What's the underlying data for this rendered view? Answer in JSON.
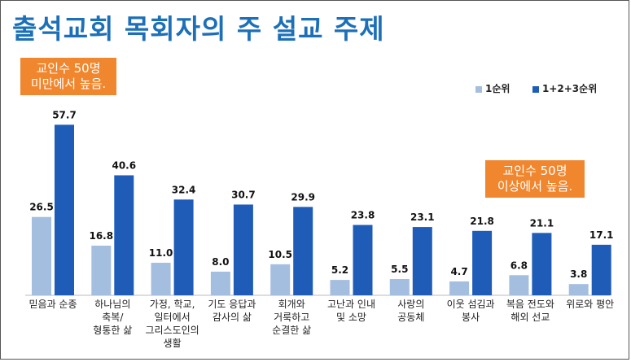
{
  "title": "출석교회 목회자의 주 설교 주제",
  "callouts": {
    "left": [
      "교인수 50명",
      "미만에서 높음."
    ],
    "right": [
      "교인수 50명",
      "이상에서 높음."
    ]
  },
  "colors": {
    "series1": "#a4bee0",
    "series2": "#1f5cb8",
    "title": "#1d70b8",
    "callout": "#f0862e"
  },
  "chart_data": {
    "type": "bar",
    "categories": [
      [
        "믿음과 순종"
      ],
      [
        "하나님의",
        "축복/",
        "형통한 삶"
      ],
      [
        "가정, 학교,",
        "일터에서",
        "그리스도인의",
        "생활"
      ],
      [
        "기도 응답과",
        "감사의 삶"
      ],
      [
        "회개와",
        "거룩하고",
        "순결한 삶"
      ],
      [
        "고난과 인내",
        "및 소망"
      ],
      [
        "사랑의",
        "공동체"
      ],
      [
        "이웃 섬김과",
        "봉사"
      ],
      [
        "복음 전도와",
        "해외 선교"
      ],
      [
        "위로와 평안"
      ]
    ],
    "series": [
      {
        "name": "1순위",
        "values": [
          26.5,
          16.8,
          11.0,
          8.0,
          10.5,
          5.2,
          5.5,
          4.7,
          6.8,
          3.8
        ],
        "labels": [
          "26.5",
          "16.8",
          "11.0",
          "8.0",
          "10.5",
          "5.2",
          "5.5",
          "4.7",
          "6.8",
          "3.8"
        ]
      },
      {
        "name": "1+2+3순위",
        "values": [
          57.7,
          40.6,
          32.4,
          30.7,
          29.9,
          23.8,
          23.1,
          21.8,
          21.1,
          17.1
        ],
        "labels": [
          "57.7",
          "40.6",
          "32.4",
          "30.7",
          "29.9",
          "23.8",
          "23.1",
          "21.8",
          "21.1",
          "17.1"
        ]
      }
    ],
    "ylim": [
      0,
      60
    ],
    "legend_position": "top-right"
  }
}
